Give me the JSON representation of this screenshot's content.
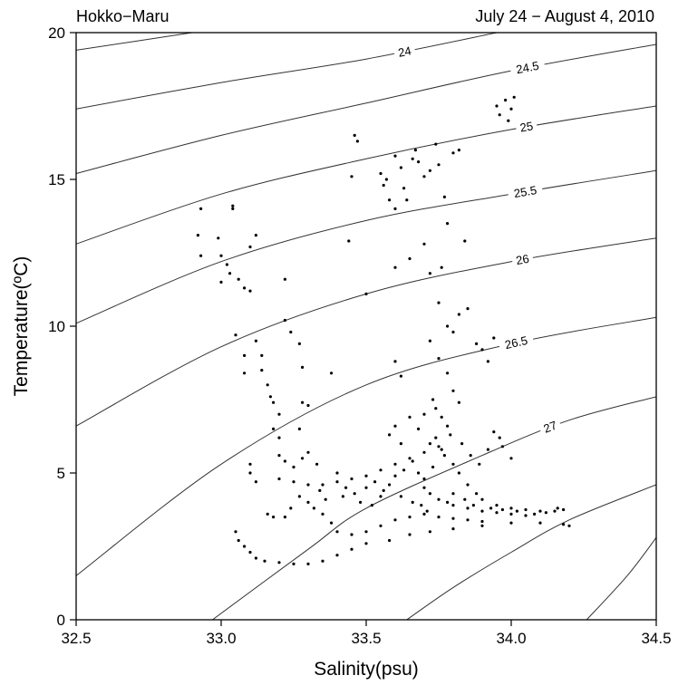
{
  "header": {
    "left": "Hokko−Maru",
    "right": "July 24 − August 4, 2010"
  },
  "chart_data": {
    "type": "scatter",
    "title": "",
    "xlabel": "Salinity(psu)",
    "ylabel": "Temperature(ºC)",
    "xlim": [
      32.5,
      34.5
    ],
    "ylim": [
      0,
      20
    ],
    "xticks": [
      "32.5",
      "33.0",
      "33.5",
      "34.0",
      "34.5"
    ],
    "yticks": [
      "0",
      "5",
      "10",
      "15",
      "20"
    ],
    "grid": false,
    "point_color": "#000000",
    "contour_color": "#333333",
    "contours": [
      {
        "label": "",
        "points": [
          [
            32.5,
            19.4
          ],
          [
            32.9,
            20.0
          ]
        ]
      },
      {
        "label": "24",
        "points": [
          [
            32.5,
            17.4
          ],
          [
            33.0,
            18.3
          ],
          [
            33.5,
            19.1
          ],
          [
            33.95,
            20.0
          ]
        ]
      },
      {
        "label": "24.5",
        "points": [
          [
            32.5,
            15.2
          ],
          [
            33.0,
            16.5
          ],
          [
            33.5,
            17.6
          ],
          [
            34.0,
            18.7
          ],
          [
            34.5,
            19.6
          ]
        ]
      },
      {
        "label": "25",
        "points": [
          [
            32.5,
            12.8
          ],
          [
            33.0,
            14.5
          ],
          [
            33.5,
            15.7
          ],
          [
            34.0,
            16.7
          ],
          [
            34.5,
            17.5
          ]
        ]
      },
      {
        "label": "25.5",
        "points": [
          [
            32.5,
            10.1
          ],
          [
            33.0,
            12.2
          ],
          [
            33.5,
            13.6
          ],
          [
            34.0,
            14.5
          ],
          [
            34.5,
            15.3
          ]
        ]
      },
      {
        "label": "26",
        "points": [
          [
            32.5,
            6.6
          ],
          [
            33.0,
            9.3
          ],
          [
            33.5,
            11.1
          ],
          [
            34.0,
            12.2
          ],
          [
            34.5,
            13.0
          ]
        ]
      },
      {
        "label": "26.5",
        "points": [
          [
            32.5,
            1.5
          ],
          [
            33.0,
            5.3
          ],
          [
            33.5,
            8.0
          ],
          [
            34.0,
            9.4
          ],
          [
            34.5,
            10.3
          ]
        ]
      },
      {
        "label": "27",
        "points": [
          [
            32.97,
            0.0
          ],
          [
            33.3,
            2.4
          ],
          [
            33.5,
            3.8
          ],
          [
            33.9,
            5.6
          ],
          [
            34.2,
            6.8
          ],
          [
            34.5,
            7.6
          ]
        ]
      },
      {
        "label": "",
        "points": [
          [
            33.64,
            0.0
          ],
          [
            33.8,
            1.1
          ],
          [
            34.0,
            2.3
          ],
          [
            34.2,
            3.4
          ],
          [
            34.5,
            4.6
          ]
        ]
      },
      {
        "label": "",
        "points": [
          [
            34.26,
            0.0
          ],
          [
            34.4,
            1.5
          ],
          [
            34.5,
            2.8
          ]
        ]
      }
    ],
    "series": [
      {
        "points": [
          [
            32.93,
            14.0
          ],
          [
            32.92,
            13.1
          ],
          [
            32.93,
            12.4
          ],
          [
            32.99,
            13.0
          ],
          [
            33.0,
            12.4
          ],
          [
            33.0,
            11.5
          ],
          [
            33.02,
            12.1
          ],
          [
            33.03,
            11.8
          ],
          [
            33.04,
            14.1
          ],
          [
            33.04,
            14.0
          ],
          [
            33.06,
            11.6
          ],
          [
            33.08,
            11.3
          ],
          [
            33.1,
            11.2
          ],
          [
            33.1,
            12.7
          ],
          [
            33.12,
            13.1
          ],
          [
            33.05,
            9.7
          ],
          [
            33.08,
            9.0
          ],
          [
            33.08,
            8.4
          ],
          [
            33.12,
            9.5
          ],
          [
            33.14,
            9.0
          ],
          [
            33.14,
            8.5
          ],
          [
            33.16,
            8.0
          ],
          [
            33.17,
            7.6
          ],
          [
            33.18,
            7.4
          ],
          [
            33.2,
            7.0
          ],
          [
            33.18,
            6.5
          ],
          [
            33.2,
            6.2
          ],
          [
            33.22,
            11.6
          ],
          [
            33.22,
            10.2
          ],
          [
            33.24,
            9.8
          ],
          [
            33.27,
            9.4
          ],
          [
            33.28,
            8.6
          ],
          [
            33.28,
            7.4
          ],
          [
            33.27,
            6.5
          ],
          [
            33.3,
            5.7
          ],
          [
            33.3,
            7.3
          ],
          [
            33.38,
            8.4
          ],
          [
            33.1,
            5.3
          ],
          [
            33.1,
            5.0
          ],
          [
            33.12,
            4.7
          ],
          [
            33.05,
            3.0
          ],
          [
            33.06,
            2.7
          ],
          [
            33.08,
            2.5
          ],
          [
            33.1,
            2.3
          ],
          [
            33.12,
            2.1
          ],
          [
            33.15,
            2.0
          ],
          [
            33.2,
            1.95
          ],
          [
            33.25,
            1.9
          ],
          [
            33.3,
            1.9
          ],
          [
            33.35,
            2.0
          ],
          [
            33.4,
            2.2
          ],
          [
            33.45,
            2.4
          ],
          [
            33.5,
            2.6
          ],
          [
            33.58,
            2.7
          ],
          [
            33.65,
            2.9
          ],
          [
            33.72,
            3.0
          ],
          [
            33.8,
            3.1
          ],
          [
            33.9,
            3.2
          ],
          [
            34.0,
            3.3
          ],
          [
            34.1,
            3.3
          ],
          [
            34.18,
            3.25
          ],
          [
            34.2,
            3.2
          ],
          [
            33.45,
            15.1
          ],
          [
            33.46,
            16.5
          ],
          [
            33.47,
            16.3
          ],
          [
            33.55,
            15.2
          ],
          [
            33.56,
            14.8
          ],
          [
            33.57,
            15.0
          ],
          [
            33.58,
            14.3
          ],
          [
            33.6,
            14.0
          ],
          [
            33.6,
            15.8
          ],
          [
            33.62,
            15.4
          ],
          [
            33.63,
            14.7
          ],
          [
            33.64,
            14.3
          ],
          [
            33.66,
            15.7
          ],
          [
            33.67,
            16.0
          ],
          [
            33.68,
            15.6
          ],
          [
            33.7,
            15.1
          ],
          [
            33.72,
            15.3
          ],
          [
            33.74,
            16.2
          ],
          [
            33.75,
            15.5
          ],
          [
            33.77,
            14.4
          ],
          [
            33.78,
            13.5
          ],
          [
            33.8,
            15.9
          ],
          [
            33.82,
            16.0
          ],
          [
            33.44,
            12.9
          ],
          [
            33.5,
            11.1
          ],
          [
            33.6,
            12.0
          ],
          [
            33.65,
            12.3
          ],
          [
            33.7,
            12.8
          ],
          [
            33.72,
            11.8
          ],
          [
            33.75,
            10.8
          ],
          [
            33.76,
            12.0
          ],
          [
            33.78,
            10.0
          ],
          [
            33.8,
            9.8
          ],
          [
            33.82,
            10.4
          ],
          [
            33.84,
            12.9
          ],
          [
            33.85,
            10.6
          ],
          [
            33.88,
            9.4
          ],
          [
            33.9,
            9.2
          ],
          [
            33.92,
            8.8
          ],
          [
            33.94,
            9.6
          ],
          [
            33.95,
            17.5
          ],
          [
            33.96,
            17.2
          ],
          [
            33.98,
            17.7
          ],
          [
            33.99,
            17.0
          ],
          [
            34.0,
            17.4
          ],
          [
            34.01,
            17.8
          ],
          [
            33.6,
            8.8
          ],
          [
            33.62,
            8.3
          ],
          [
            33.72,
            9.5
          ],
          [
            33.75,
            8.9
          ],
          [
            33.78,
            8.4
          ],
          [
            33.8,
            7.8
          ],
          [
            33.82,
            7.4
          ],
          [
            33.74,
            7.2
          ],
          [
            33.76,
            6.9
          ],
          [
            33.78,
            6.6
          ],
          [
            33.2,
            4.8
          ],
          [
            33.25,
            4.7
          ],
          [
            33.3,
            4.6
          ],
          [
            33.35,
            4.6
          ],
          [
            33.4,
            4.7
          ],
          [
            33.45,
            4.8
          ],
          [
            33.5,
            4.9
          ],
          [
            33.55,
            5.1
          ],
          [
            33.6,
            5.3
          ],
          [
            33.65,
            5.5
          ],
          [
            33.7,
            5.7
          ],
          [
            33.72,
            6.0
          ],
          [
            33.74,
            6.2
          ],
          [
            33.75,
            5.9
          ],
          [
            33.77,
            5.6
          ],
          [
            33.8,
            5.3
          ],
          [
            33.82,
            5.0
          ],
          [
            33.85,
            4.6
          ],
          [
            33.88,
            4.3
          ],
          [
            33.9,
            4.1
          ],
          [
            33.95,
            3.9
          ],
          [
            34.0,
            3.8
          ],
          [
            34.05,
            3.75
          ],
          [
            34.1,
            3.7
          ],
          [
            34.15,
            3.7
          ],
          [
            33.7,
            4.5
          ],
          [
            33.72,
            4.3
          ],
          [
            33.75,
            4.1
          ],
          [
            33.78,
            4.0
          ],
          [
            33.8,
            3.9
          ],
          [
            33.85,
            3.8
          ],
          [
            33.9,
            3.7
          ],
          [
            33.95,
            3.65
          ],
          [
            34.0,
            3.6
          ],
          [
            34.05,
            3.55
          ],
          [
            33.3,
            4.0
          ],
          [
            33.32,
            3.8
          ],
          [
            33.35,
            3.6
          ],
          [
            33.38,
            3.3
          ],
          [
            33.4,
            3.0
          ],
          [
            33.45,
            2.9
          ],
          [
            33.5,
            3.0
          ],
          [
            33.55,
            3.2
          ],
          [
            33.6,
            3.4
          ],
          [
            33.65,
            3.5
          ],
          [
            33.7,
            3.6
          ],
          [
            33.75,
            3.5
          ],
          [
            33.8,
            3.45
          ],
          [
            33.85,
            3.4
          ],
          [
            33.9,
            3.35
          ],
          [
            33.2,
            5.6
          ],
          [
            33.22,
            5.4
          ],
          [
            33.25,
            5.2
          ],
          [
            33.28,
            5.5
          ],
          [
            33.33,
            5.3
          ],
          [
            33.4,
            5.0
          ],
          [
            33.43,
            4.5
          ],
          [
            33.46,
            4.3
          ],
          [
            33.48,
            4.0
          ],
          [
            33.52,
            3.9
          ],
          [
            33.55,
            4.2
          ],
          [
            33.58,
            4.6
          ],
          [
            33.6,
            4.9
          ],
          [
            33.63,
            5.1
          ],
          [
            33.66,
            5.4
          ],
          [
            33.68,
            5.0
          ],
          [
            33.7,
            4.8
          ],
          [
            33.73,
            5.2
          ],
          [
            33.76,
            5.8
          ],
          [
            33.79,
            6.3
          ],
          [
            33.83,
            6.0
          ],
          [
            33.86,
            5.6
          ],
          [
            33.89,
            5.3
          ],
          [
            33.92,
            5.8
          ],
          [
            33.94,
            6.4
          ],
          [
            33.96,
            6.2
          ],
          [
            33.97,
            5.9
          ],
          [
            34.0,
            5.5
          ],
          [
            33.58,
            6.3
          ],
          [
            33.6,
            6.6
          ],
          [
            33.62,
            6.0
          ],
          [
            33.65,
            6.9
          ],
          [
            33.68,
            6.5
          ],
          [
            33.7,
            7.0
          ],
          [
            33.73,
            7.5
          ],
          [
            33.16,
            3.6
          ],
          [
            33.18,
            3.5
          ],
          [
            33.22,
            3.5
          ],
          [
            33.24,
            3.8
          ],
          [
            33.27,
            4.2
          ],
          [
            33.34,
            4.4
          ],
          [
            33.36,
            4.1
          ],
          [
            33.42,
            4.2
          ],
          [
            33.5,
            4.5
          ],
          [
            33.53,
            4.7
          ],
          [
            33.56,
            4.4
          ],
          [
            33.62,
            4.2
          ],
          [
            33.66,
            4.0
          ],
          [
            33.69,
            3.9
          ],
          [
            33.71,
            3.7
          ],
          [
            33.8,
            4.3
          ],
          [
            33.84,
            4.1
          ],
          [
            33.87,
            3.9
          ],
          [
            33.93,
            3.8
          ],
          [
            33.97,
            3.75
          ],
          [
            34.02,
            3.7
          ],
          [
            34.08,
            3.6
          ],
          [
            34.12,
            3.65
          ],
          [
            34.16,
            3.8
          ],
          [
            34.18,
            3.75
          ]
        ]
      }
    ]
  }
}
